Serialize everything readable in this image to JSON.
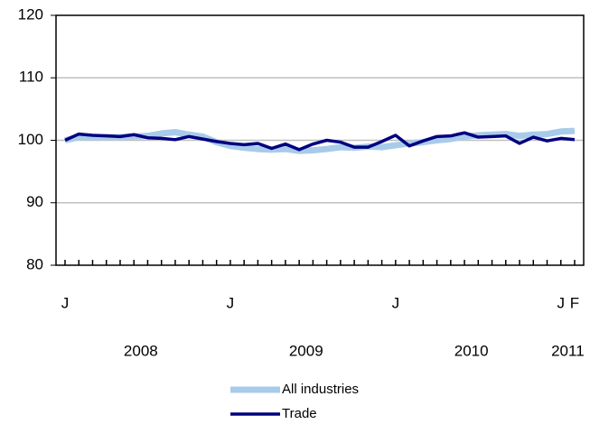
{
  "chart_data": {
    "type": "line",
    "categories": [
      "J",
      null,
      null,
      null,
      null,
      null,
      null,
      null,
      null,
      null,
      null,
      null,
      "J",
      null,
      null,
      null,
      null,
      null,
      null,
      null,
      null,
      null,
      null,
      null,
      "J",
      null,
      null,
      null,
      null,
      null,
      null,
      null,
      null,
      null,
      null,
      null,
      "J",
      "F"
    ],
    "x_groups": [
      "2008",
      "2009",
      "2010",
      "2011"
    ],
    "series": [
      {
        "name": "All industries",
        "color": "#a9cbea",
        "values": [
          100,
          100.5,
          100.5,
          100.5,
          100.5,
          100.6,
          100.7,
          101.1,
          101.3,
          100.9,
          100.6,
          99.7,
          99.1,
          98.8,
          98.6,
          98.5,
          98.6,
          98.3,
          98.4,
          98.6,
          98.9,
          98.8,
          99,
          98.9,
          99.2,
          99.5,
          99.7,
          100,
          100.2,
          100.6,
          100.8,
          100.9,
          101,
          100.7,
          100.9,
          101,
          101.4,
          101.5
        ]
      },
      {
        "name": "Trade",
        "color": "#000080",
        "values": [
          100,
          101,
          100.8,
          100.7,
          100.6,
          100.9,
          100.4,
          100.3,
          100.1,
          100.6,
          100.2,
          99.8,
          99.5,
          99.3,
          99.5,
          98.7,
          99.4,
          98.5,
          99.4,
          100,
          99.7,
          98.9,
          98.9,
          99.8,
          100.8,
          99.1,
          99.9,
          100.6,
          100.7,
          101.2,
          100.5,
          100.6,
          100.7,
          99.5,
          100.5,
          99.9,
          100.3,
          100.1
        ]
      }
    ],
    "ylim": [
      80,
      120
    ],
    "yticks": [
      80,
      90,
      100,
      110,
      120
    ],
    "grid": true
  }
}
